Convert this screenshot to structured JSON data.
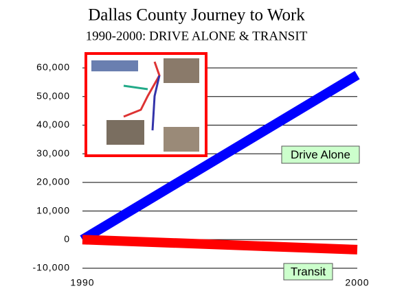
{
  "chart_data": {
    "type": "line",
    "title": "Dallas County Journey to Work",
    "subtitle": "1990-2000: DRIVE ALONE & TRANSIT",
    "x": [
      1990,
      2000
    ],
    "xlim": [
      1990,
      2000
    ],
    "xticks": [
      1990,
      2000
    ],
    "ylim": [
      -10000,
      60000
    ],
    "yticks": [
      {
        "value": 60000,
        "label": "60,000"
      },
      {
        "value": 50000,
        "label": "50,000"
      },
      {
        "value": 40000,
        "label": "40,000"
      },
      {
        "value": 30000,
        "label": "30,000"
      },
      {
        "value": 20000,
        "label": "20,000"
      },
      {
        "value": 10000,
        "label": "10,000"
      },
      0,
      {
        "value": -10000,
        "label": "-10,000"
      }
    ],
    "grid": true,
    "series": [
      {
        "name": "Drive Alone",
        "color": "#0000ff",
        "values": [
          0,
          57500
        ]
      },
      {
        "name": "Transit",
        "color": "#ff0000",
        "values": [
          0,
          -3500
        ]
      }
    ]
  }
}
